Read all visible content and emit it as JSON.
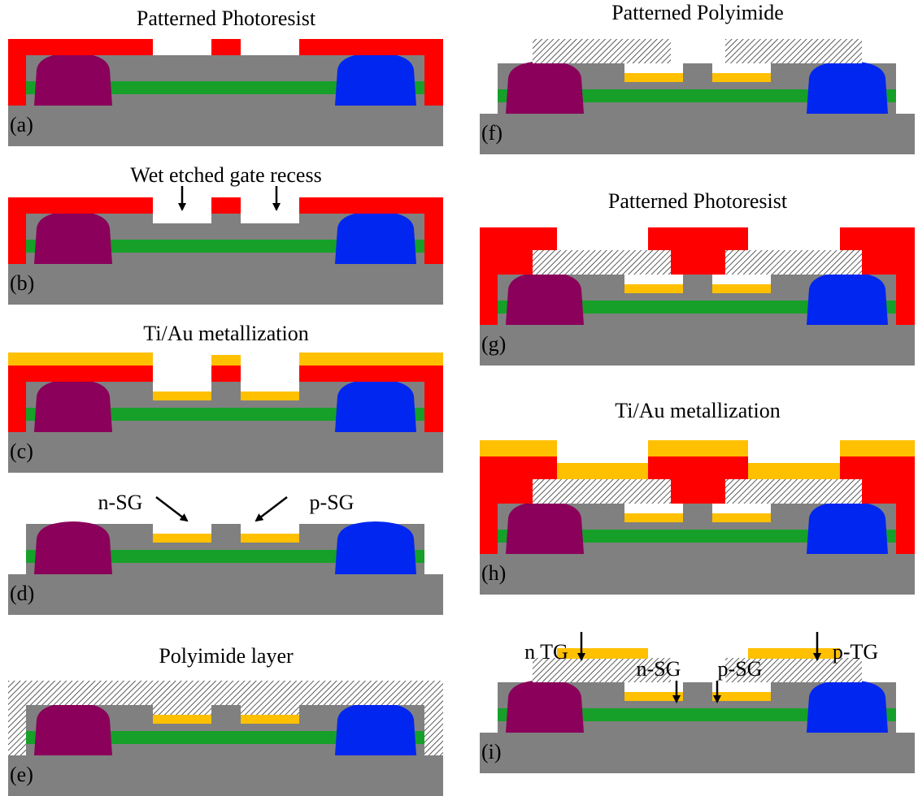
{
  "panels": [
    {
      "title": "Patterned Photoresist",
      "label": "(a)"
    },
    {
      "title": "Wet etched gate recess",
      "label": "(b)"
    },
    {
      "title": "Ti/Au metallization",
      "label": "(c)"
    },
    {
      "label": "(d)",
      "annotations": [
        "n-SG",
        "p-SG"
      ]
    },
    {
      "title": "Polyimide layer",
      "label": "(e)"
    },
    {
      "title": "Patterned Polyimide",
      "label": "(f)"
    },
    {
      "title": "Patterned Photoresist",
      "label": "(g)"
    },
    {
      "title": "Ti/Au metallization",
      "label": "(h)"
    },
    {
      "label": "(i)",
      "annotations": [
        "n TG",
        "n-SG",
        "p-SG",
        "p-TG"
      ]
    }
  ]
}
